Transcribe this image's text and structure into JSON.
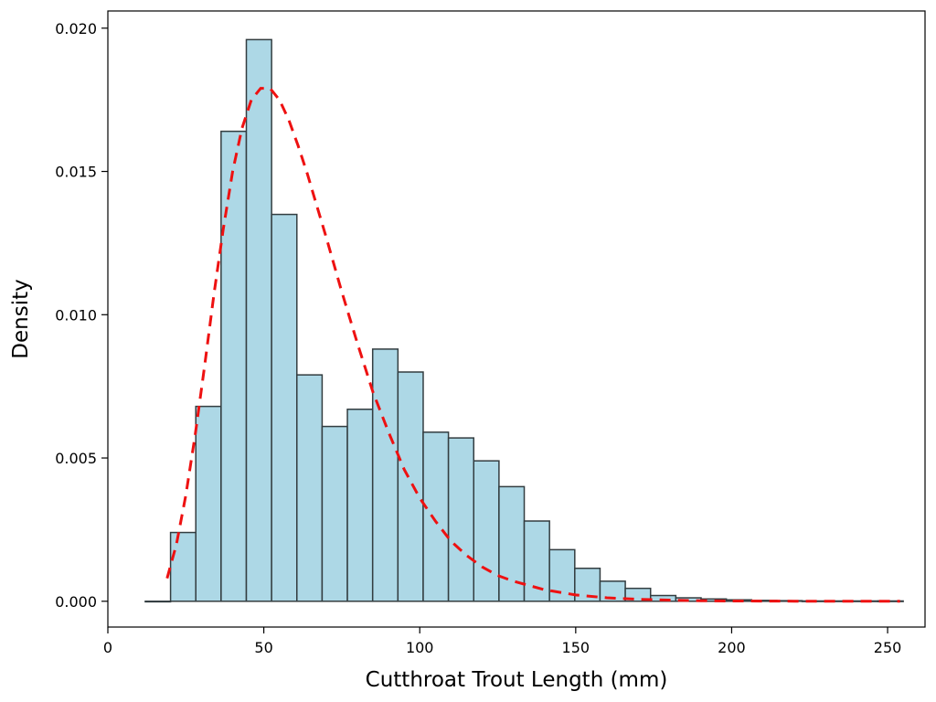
{
  "chart_data": {
    "type": "bar",
    "subtype": "histogram-with-density-curve",
    "title": "",
    "xlabel": "Cutthroat Trout Length (mm)",
    "ylabel": "Density",
    "xlim": [
      0,
      262
    ],
    "ylim": [
      -0.0009,
      0.0206
    ],
    "xticks": [
      0,
      50,
      100,
      150,
      200,
      250
    ],
    "xtick_labels": [
      "0",
      "50",
      "100",
      "150",
      "200",
      "250"
    ],
    "yticks": [
      0.0,
      0.005,
      0.01,
      0.015,
      0.02
    ],
    "ytick_labels": [
      "0.000",
      "0.005",
      "0.010",
      "0.015",
      "0.020"
    ],
    "grid": false,
    "bin_width": 8.1,
    "bins": [
      {
        "x0": 12.0,
        "x1": 20.1,
        "density": 0.0
      },
      {
        "x0": 20.1,
        "x1": 28.2,
        "density": 0.0024
      },
      {
        "x0": 28.2,
        "x1": 36.3,
        "density": 0.0068
      },
      {
        "x0": 36.3,
        "x1": 44.4,
        "density": 0.0164
      },
      {
        "x0": 44.4,
        "x1": 52.5,
        "density": 0.0196
      },
      {
        "x0": 52.5,
        "x1": 60.6,
        "density": 0.0135
      },
      {
        "x0": 60.6,
        "x1": 68.7,
        "density": 0.0079
      },
      {
        "x0": 68.7,
        "x1": 76.8,
        "density": 0.0061
      },
      {
        "x0": 76.8,
        "x1": 84.9,
        "density": 0.0067
      },
      {
        "x0": 84.9,
        "x1": 93.0,
        "density": 0.0088
      },
      {
        "x0": 93.0,
        "x1": 101.1,
        "density": 0.008
      },
      {
        "x0": 101.1,
        "x1": 109.2,
        "density": 0.0059
      },
      {
        "x0": 109.2,
        "x1": 117.3,
        "density": 0.0057
      },
      {
        "x0": 117.3,
        "x1": 125.4,
        "density": 0.0049
      },
      {
        "x0": 125.4,
        "x1": 133.5,
        "density": 0.004
      },
      {
        "x0": 133.5,
        "x1": 141.6,
        "density": 0.0028
      },
      {
        "x0": 141.6,
        "x1": 149.7,
        "density": 0.0018
      },
      {
        "x0": 149.7,
        "x1": 157.8,
        "density": 0.00115
      },
      {
        "x0": 157.8,
        "x1": 165.9,
        "density": 0.0007
      },
      {
        "x0": 165.9,
        "x1": 174.0,
        "density": 0.00045
      },
      {
        "x0": 174.0,
        "x1": 182.1,
        "density": 0.0002
      },
      {
        "x0": 182.1,
        "x1": 190.2,
        "density": 0.00012
      },
      {
        "x0": 190.2,
        "x1": 198.3,
        "density": 8e-05
      },
      {
        "x0": 198.3,
        "x1": 206.4,
        "density": 5e-05
      },
      {
        "x0": 206.4,
        "x1": 214.5,
        "density": 3e-05
      },
      {
        "x0": 214.5,
        "x1": 222.6,
        "density": 2e-05
      },
      {
        "x0": 222.6,
        "x1": 230.7,
        "density": 1e-05
      },
      {
        "x0": 230.7,
        "x1": 238.8,
        "density": 1e-05
      },
      {
        "x0": 238.8,
        "x1": 246.9,
        "density": 1e-05
      },
      {
        "x0": 246.9,
        "x1": 255.0,
        "density": 1e-05
      }
    ],
    "curve": {
      "style": "dashed",
      "x": [
        19,
        22,
        25,
        28,
        31,
        34,
        37,
        40,
        43,
        46,
        49,
        52,
        55,
        58,
        61,
        64,
        67,
        70,
        75,
        80,
        85,
        90,
        95,
        100,
        105,
        110,
        115,
        120,
        125,
        130,
        140,
        150,
        160,
        170,
        180,
        190,
        200,
        210,
        220,
        230,
        240,
        254
      ],
      "y": [
        0.0008,
        0.002,
        0.0037,
        0.0058,
        0.0082,
        0.0107,
        0.013,
        0.015,
        0.0165,
        0.0175,
        0.0179,
        0.0179,
        0.0175,
        0.0168,
        0.0159,
        0.0149,
        0.0138,
        0.0127,
        0.0108,
        0.009,
        0.0073,
        0.0059,
        0.0046,
        0.0036,
        0.0028,
        0.0021,
        0.0016,
        0.0012,
        0.0009,
        0.0007,
        0.0004,
        0.00022,
        0.00012,
        7e-05,
        4e-05,
        2e-05,
        1e-05,
        6e-06,
        3e-06,
        2e-06,
        1e-06,
        5e-07
      ]
    },
    "colors": {
      "bar_fill": "#add8e6",
      "bar_edge": "#333d40",
      "curve": "#ee1111",
      "axes": "#000000"
    }
  }
}
